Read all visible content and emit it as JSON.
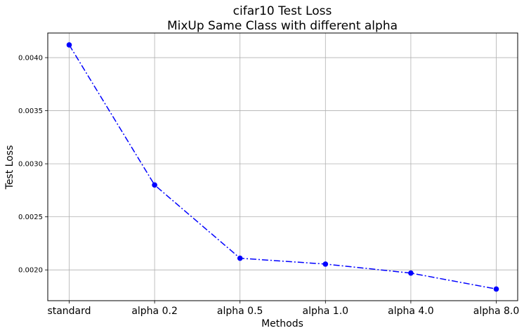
{
  "chart_data": {
    "type": "line",
    "title": "cifar10 Test Loss",
    "subtitle": "MixUp Same Class with different alpha",
    "xlabel": "Methods",
    "ylabel": "Test Loss",
    "categories": [
      "standard",
      "alpha 0.2",
      "alpha 0.5",
      "alpha 1.0",
      "alpha 4.0",
      "alpha 8.0"
    ],
    "series": [
      {
        "values": [
          0.00412,
          0.0028,
          0.00211,
          0.002055,
          0.00197,
          0.00182
        ],
        "color": "#0000ff",
        "line_style": "dashdot",
        "marker": "circle"
      }
    ],
    "yticks": [
      "0.0020",
      "0.0025",
      "0.0030",
      "0.0035",
      "0.0040"
    ],
    "ylim": [
      0.00171,
      0.004232
    ],
    "grid": true,
    "legend": "none"
  }
}
